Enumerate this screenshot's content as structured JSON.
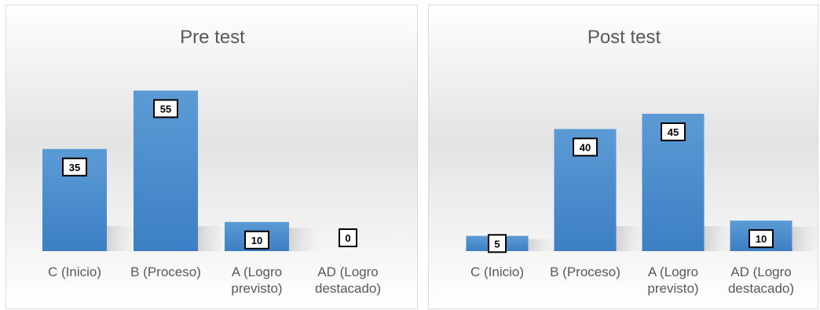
{
  "colors": {
    "bar_top": "#5b9bd5",
    "bar_bottom": "#3c7fc4",
    "label_border": "#000000"
  },
  "chart_data": [
    {
      "type": "bar",
      "title": "Pre test",
      "categories": [
        "C (Inicio)",
        "B (Proceso)",
        "A (Logro previsto)",
        "AD (Logro destacado)"
      ],
      "category_lines": [
        [
          "C (Inicio)"
        ],
        [
          "B (Proceso)"
        ],
        [
          "A (Logro",
          "previsto)"
        ],
        [
          "AD (Logro",
          "destacado)"
        ]
      ],
      "values": [
        35,
        55,
        10,
        0
      ],
      "ylim": [
        0,
        60
      ],
      "grid": false,
      "legend": "none"
    },
    {
      "type": "bar",
      "title": "Post test",
      "categories": [
        "C (Inicio)",
        "B (Proceso)",
        "A (Logro previsto)",
        "AD (Logro destacado)"
      ],
      "category_lines": [
        [
          "C (Inicio)"
        ],
        [
          "B (Proceso)"
        ],
        [
          "A (Logro",
          "previsto)"
        ],
        [
          "AD (Logro",
          "destacado)"
        ]
      ],
      "values": [
        5,
        40,
        45,
        10
      ],
      "ylim": [
        0,
        60
      ],
      "grid": false,
      "legend": "none"
    }
  ]
}
